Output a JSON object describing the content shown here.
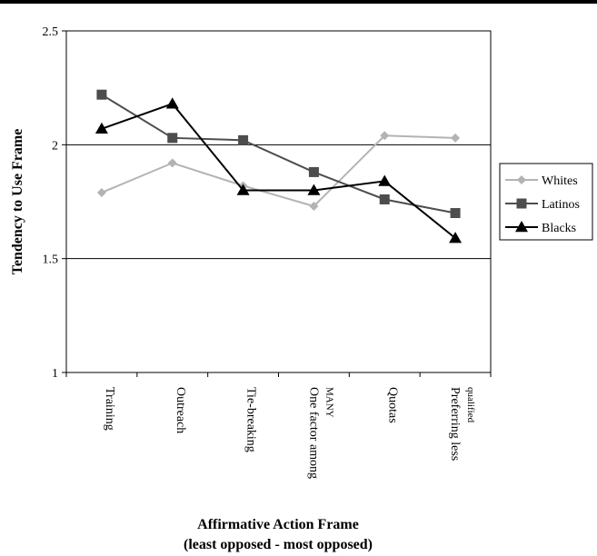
{
  "chart_data": {
    "type": "line",
    "categories": [
      "Training",
      "Outreach",
      "Tie-breaking",
      "One factor among|MANY",
      "Quotas",
      "Preferring less|qualified"
    ],
    "series": [
      {
        "name": "Whites",
        "color": "#b3b3b3",
        "marker": "diamond",
        "values": [
          1.79,
          1.92,
          1.82,
          1.73,
          2.04,
          2.03
        ]
      },
      {
        "name": "Latinos",
        "color": "#4d4d4d",
        "marker": "square",
        "values": [
          2.22,
          2.03,
          2.02,
          1.88,
          1.76,
          1.7
        ]
      },
      {
        "name": "Blacks",
        "color": "#000000",
        "marker": "triangle",
        "values": [
          2.07,
          2.18,
          1.8,
          1.8,
          1.84,
          1.59
        ]
      }
    ],
    "ylim": [
      1,
      2.5
    ],
    "yticks": [
      "1",
      "1.5",
      "2",
      "2.5"
    ],
    "ylabel": "Tendency to Use Frame",
    "xlabel": "Affirmative Action Frame",
    "xlabel_sub": "(least opposed - most opposed)",
    "grid": "horizontal",
    "legend": "right"
  }
}
